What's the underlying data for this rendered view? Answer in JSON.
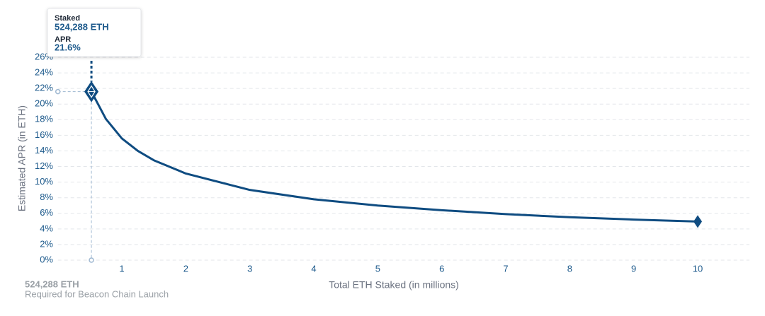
{
  "chart_data": {
    "type": "line",
    "x_label": "Total ETH Staked  (in millions)",
    "y_label": "Estimated APR (in ETH)",
    "x": [
      0.524288,
      0.75,
      1,
      1.25,
      1.5,
      2,
      3,
      4,
      5,
      6,
      7,
      8,
      9,
      10
    ],
    "series": [
      {
        "color": "#0f4c81",
        "values": [
          21.6,
          18.1,
          15.6,
          14.0,
          12.8,
          11.1,
          9.0,
          7.8,
          7.0,
          6.4,
          5.9,
          5.5,
          5.2,
          4.95
        ]
      }
    ],
    "xlim": [
      0,
      10.8
    ],
    "xticks": [
      1,
      2,
      3,
      4,
      5,
      6,
      7,
      8,
      9,
      10
    ],
    "ylim": [
      0,
      26
    ],
    "yticks": [
      {
        "value": 0,
        "label": "0%"
      },
      {
        "value": 2,
        "label": "2%"
      },
      {
        "value": 4,
        "label": "4%"
      },
      {
        "value": 6,
        "label": "6%"
      },
      {
        "value": 8,
        "label": "8%"
      },
      {
        "value": 10,
        "label": "10%"
      },
      {
        "value": 12,
        "label": "12%"
      },
      {
        "value": 14,
        "label": "14%"
      },
      {
        "value": 16,
        "label": "16%"
      },
      {
        "value": 18,
        "label": "18%"
      },
      {
        "value": 20,
        "label": "20%"
      },
      {
        "value": 22,
        "label": "22%"
      },
      {
        "value": 24,
        "label": "24%"
      },
      {
        "value": 26,
        "label": "26%"
      }
    ],
    "grid": true,
    "highlight": {
      "x": 0.524288,
      "y": 21.6
    },
    "tooltip": {
      "staked_label": "Staked",
      "staked_value": "524,288 ETH",
      "apr_label": "APR",
      "apr_value": "21.6%"
    },
    "footnote": {
      "title": "524,288 ETH",
      "text": "Required for Beacon Chain Launch"
    }
  }
}
